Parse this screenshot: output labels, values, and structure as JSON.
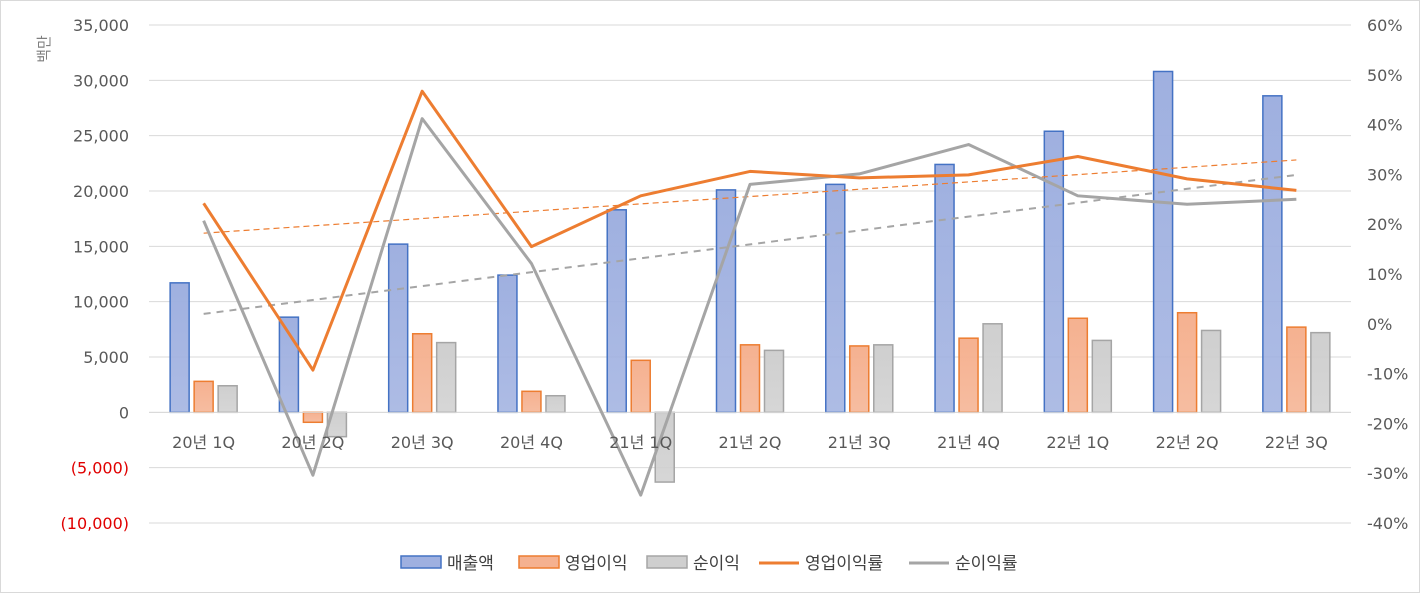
{
  "chart_data": {
    "type": "bar",
    "ylabel": "백만",
    "categories": [
      "20년 1Q",
      "20년 2Q",
      "20년 3Q",
      "20년 4Q",
      "21년 1Q",
      "21년 2Q",
      "21년 3Q",
      "21년 4Q",
      "22년 1Q",
      "22년 2Q",
      "22년 3Q"
    ],
    "y_left": {
      "min": -10000,
      "max": 35000,
      "step": 5000,
      "ticks": [
        "(10,000)",
        "(5,000)",
        "0",
        "5,000",
        "10,000",
        "15,000",
        "20,000",
        "25,000",
        "30,000",
        "35,000"
      ],
      "negative_tick_color": "#e00000"
    },
    "y_right": {
      "min": -40,
      "max": 60,
      "step": 10,
      "ticks": [
        "-40%",
        "-30%",
        "-20%",
        "-10%",
        "0%",
        "10%",
        "20%",
        "30%",
        "40%",
        "50%",
        "60%"
      ]
    },
    "bar_series": [
      {
        "name": "매출액",
        "color": "#4472c4",
        "fill": "#9fb0e0",
        "values": [
          11700,
          8600,
          15200,
          12400,
          18300,
          20100,
          20600,
          22400,
          25400,
          30800,
          28600
        ]
      },
      {
        "name": "영업이익",
        "color": "#ed7d31",
        "fill": "#f5b190",
        "values": [
          2800,
          -900,
          7100,
          1900,
          4700,
          6100,
          6000,
          6700,
          8500,
          9000,
          7700
        ]
      },
      {
        "name": "순이익",
        "color": "#a5a5a5",
        "fill": "#cfcfcf",
        "values": [
          2400,
          -2200,
          6300,
          1500,
          -6300,
          5600,
          6100,
          8000,
          6500,
          7400,
          7200
        ]
      }
    ],
    "line_series": [
      {
        "name": "영업이익률",
        "color": "#ed7d31",
        "axis": "right",
        "values": [
          24.2,
          -9.3,
          46.7,
          15.5,
          25.7,
          30.6,
          29.3,
          29.9,
          33.6,
          29.1,
          26.8
        ]
      },
      {
        "name": "순이익률",
        "color": "#a5a5a5",
        "axis": "right",
        "values": [
          20.7,
          -30.4,
          41.2,
          12.1,
          -34.4,
          28.0,
          30.1,
          36.0,
          25.7,
          24.0,
          25.0
        ]
      }
    ],
    "trendlines": [
      {
        "of": "영업이익률",
        "color": "#ed7d31",
        "style": "dashed",
        "start": 18.2,
        "end": 32.9
      },
      {
        "of": "순이익률",
        "color": "#a5a5a5",
        "style": "dashed",
        "start": 2.0,
        "end": 29.9
      }
    ],
    "grid": true,
    "legend": {
      "position": "bottom",
      "items": [
        {
          "label": "매출액",
          "kind": "bar",
          "color": "#4472c4",
          "fill": "#9fb0e0"
        },
        {
          "label": "영업이익",
          "kind": "bar",
          "color": "#ed7d31",
          "fill": "#f5b190"
        },
        {
          "label": "순이익",
          "kind": "bar",
          "color": "#a5a5a5",
          "fill": "#cfcfcf"
        },
        {
          "label": "영업이익률",
          "kind": "line",
          "color": "#ed7d31"
        },
        {
          "label": "순이익률",
          "kind": "line",
          "color": "#a5a5a5"
        }
      ]
    }
  }
}
